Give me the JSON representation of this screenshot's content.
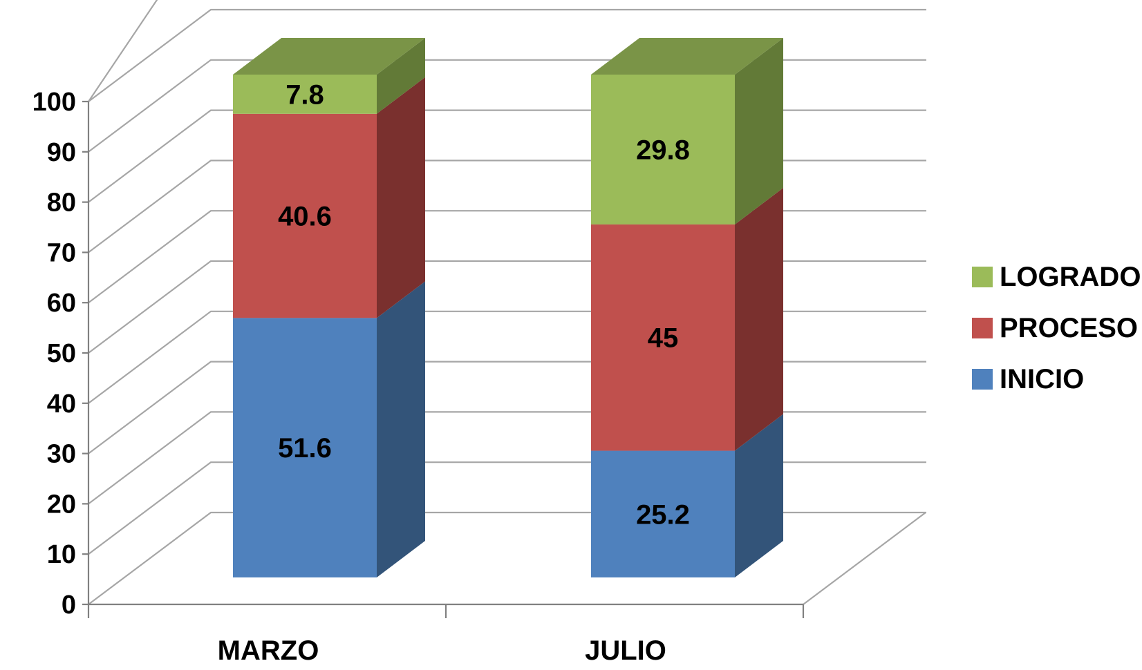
{
  "chart_data": {
    "type": "bar",
    "stacked": true,
    "three_d": true,
    "categories": [
      "MARZO",
      "JULIO"
    ],
    "series": [
      {
        "name": "INICIO",
        "values": [
          51.6,
          25.2
        ],
        "color": "#4f81bd",
        "side": "#335479",
        "top": "#6f97c8"
      },
      {
        "name": "PROCESO",
        "values": [
          40.6,
          45
        ],
        "color": "#c0504d",
        "side": "#7a302e",
        "top": "#cd7370"
      },
      {
        "name": "LOGRADO",
        "values": [
          7.8,
          29.8
        ],
        "color": "#9bbb59",
        "side": "#627a37",
        "top": "#7a9447"
      }
    ],
    "value_labels": [
      [
        "51.6",
        "25.2"
      ],
      [
        "40.6",
        "45"
      ],
      [
        "7.8",
        "29.8"
      ]
    ],
    "yticks": [
      "0",
      "10",
      "20",
      "30",
      "40",
      "50",
      "60",
      "70",
      "80",
      "90",
      "100"
    ],
    "ylim": [
      0,
      100
    ],
    "grid": true,
    "legend": "right",
    "legend_order": [
      "LOGRADO",
      "PROCESO",
      "INICIO"
    ],
    "title": "",
    "xlabel": "",
    "ylabel": ""
  }
}
